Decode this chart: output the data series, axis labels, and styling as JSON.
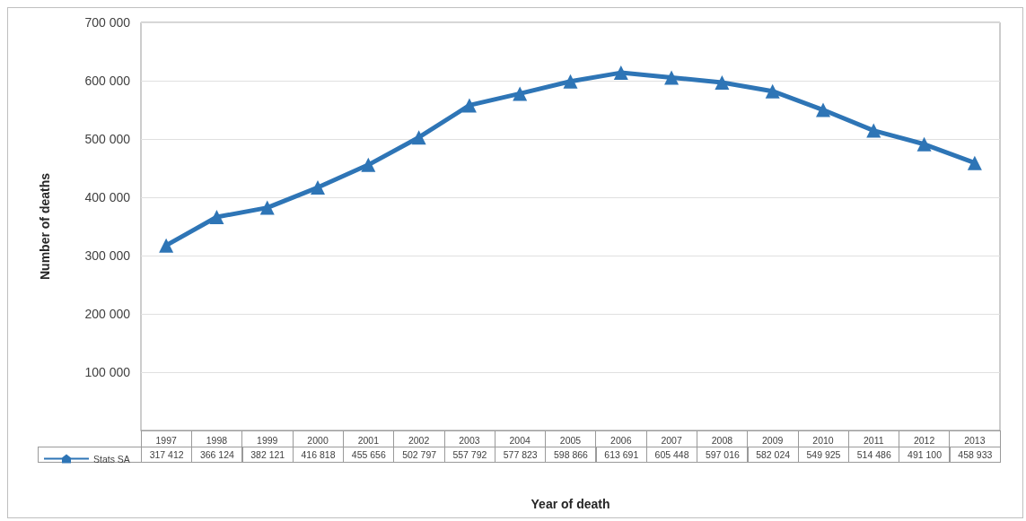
{
  "chart_data": {
    "type": "line",
    "xlabel": "Year of death",
    "ylabel": "Number of deaths",
    "categories": [
      "1997",
      "1998",
      "1999",
      "2000",
      "2001",
      "2002",
      "2003",
      "2004",
      "2005",
      "2006",
      "2007",
      "2008",
      "2009",
      "2010",
      "2011",
      "2012",
      "2013"
    ],
    "series": [
      {
        "name": "Stats SA",
        "color": "#2e75b6",
        "values": [
          317412,
          366124,
          382121,
          416818,
          455656,
          502797,
          557792,
          577823,
          598866,
          613691,
          605448,
          597016,
          582024,
          549925,
          514486,
          491100,
          458933
        ]
      }
    ],
    "ylim": [
      0,
      700000
    ],
    "yticks": [
      {
        "value": 100000,
        "label": "100 000"
      },
      {
        "value": 200000,
        "label": "200 000"
      },
      {
        "value": 300000,
        "label": "300 000"
      },
      {
        "value": 400000,
        "label": "400 000"
      },
      {
        "value": 500000,
        "label": "500 000"
      },
      {
        "value": 600000,
        "label": "600 000"
      },
      {
        "value": 700000,
        "label": "700 000"
      }
    ],
    "grid": "y",
    "legend": "bottom left",
    "marker": "triangle",
    "line_style": "solid",
    "data_labels": true
  }
}
